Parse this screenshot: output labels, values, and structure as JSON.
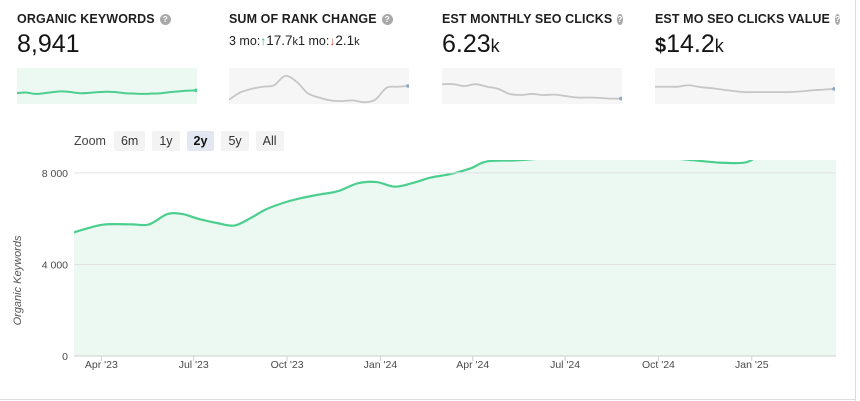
{
  "metrics": {
    "organic_keywords": {
      "label": "ORGANIC KEYWORDS",
      "value": "8,941",
      "trend": [
        0.3,
        0.32,
        0.28,
        0.3,
        0.33,
        0.35,
        0.33,
        0.3,
        0.31,
        0.33,
        0.34,
        0.33,
        0.3,
        0.29,
        0.28,
        0.29,
        0.3,
        0.33,
        0.35,
        0.37,
        0.38
      ]
    },
    "sum_rank_change": {
      "label": "SUM OF RANK CHANGE",
      "period": "3 mo:",
      "up_value": "17.7",
      "up_unit": "k",
      "mid": "1 mo:",
      "down_value": "2.1",
      "down_unit": "k",
      "trend": [
        0.12,
        0.32,
        0.42,
        0.48,
        0.52,
        0.78,
        0.62,
        0.3,
        0.18,
        0.1,
        0.08,
        0.1,
        0.05,
        0.12,
        0.45,
        0.48,
        0.5
      ]
    },
    "monthly_seo_clicks": {
      "label": "EST MONTHLY SEO CLICKS",
      "value": "6.23",
      "unit": "k",
      "trend": [
        0.55,
        0.55,
        0.5,
        0.55,
        0.48,
        0.42,
        0.28,
        0.25,
        0.28,
        0.25,
        0.26,
        0.22,
        0.18,
        0.18,
        0.17,
        0.15,
        0.15
      ]
    },
    "seo_clicks_value": {
      "label": "EST MO SEO CLICKS VALUE",
      "currency": "$",
      "value": "14.2",
      "unit": "k",
      "trend": [
        0.48,
        0.48,
        0.48,
        0.52,
        0.47,
        0.44,
        0.4,
        0.36,
        0.33,
        0.33,
        0.33,
        0.33,
        0.33,
        0.35,
        0.38,
        0.4,
        0.42
      ]
    }
  },
  "zoom": {
    "label": "Zoom",
    "options": [
      "6m",
      "1y",
      "2y",
      "5y",
      "All"
    ],
    "active": "2y"
  },
  "colors": {
    "line": "#4ccf8e",
    "fill": "#ecf9f3",
    "spark_gray": "#c6c6c6",
    "up": "#2fb37a",
    "down": "#e0443a"
  },
  "chart_data": {
    "type": "area",
    "ylabel": "Organic Keywords",
    "xlabel": "",
    "ylim": [
      0,
      9000
    ],
    "y_ticks": [
      0,
      4000,
      8000
    ],
    "y_tick_labels": [
      "0",
      "4 000",
      "8 000"
    ],
    "x_ticks": [
      "Apr '23",
      "Jul '23",
      "Oct '23",
      "Jan '24",
      "Apr '24",
      "Jul '24",
      "Oct '24",
      "Jan '25"
    ],
    "x": [
      "2023-03-05",
      "2023-03-20",
      "2023-04-05",
      "2023-05-01",
      "2023-05-18",
      "2023-06-05",
      "2023-06-20",
      "2023-07-05",
      "2023-07-25",
      "2023-08-10",
      "2023-08-25",
      "2023-09-10",
      "2023-09-28",
      "2023-10-15",
      "2023-11-01",
      "2023-11-20",
      "2023-12-10",
      "2023-12-28",
      "2024-01-15",
      "2024-02-01",
      "2024-02-20",
      "2024-03-10",
      "2024-03-30",
      "2024-04-15",
      "2024-05-15",
      "2024-06-10",
      "2024-06-25",
      "2024-07-10",
      "2024-07-25",
      "2024-08-15",
      "2024-09-10",
      "2024-10-10",
      "2024-11-05",
      "2024-11-30",
      "2024-12-25",
      "2025-01-10",
      "2025-02-01",
      "2025-03-01",
      "2025-03-25"
    ],
    "series": [
      {
        "values": [
          5400,
          5600,
          5750,
          5750,
          5750,
          6200,
          6200,
          6000,
          5800,
          5700,
          6000,
          6400,
          6700,
          6900,
          7050,
          7200,
          7550,
          7600,
          7400,
          7550,
          7800,
          7950,
          8200,
          8500,
          8550,
          8650,
          8800,
          9200,
          9150,
          8800,
          8700,
          8650,
          8550,
          8450,
          8450,
          8750,
          8850,
          8900,
          8950
        ]
      }
    ]
  }
}
